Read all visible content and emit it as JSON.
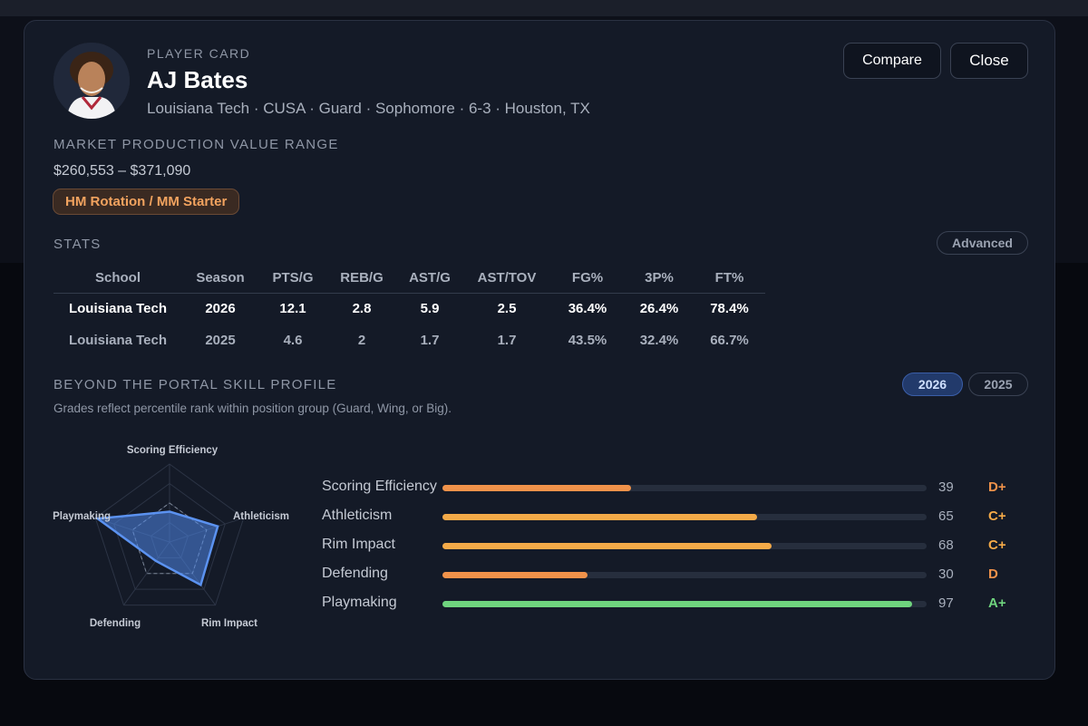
{
  "player": {
    "kicker": "PLAYER CARD",
    "name": "AJ Bates",
    "subline": "Louisiana Tech · CUSA · Guard · Sophomore · 6-3 · Houston, TX"
  },
  "actions": {
    "compare_label": "Compare",
    "close_label": "Close"
  },
  "market": {
    "title": "MARKET PRODUCTION VALUE RANGE",
    "range": "$260,553 – $371,090",
    "tier": "HM Rotation / MM Starter"
  },
  "stats": {
    "title": "STATS",
    "advanced_label": "Advanced",
    "columns": [
      "School",
      "Season",
      "PTS/G",
      "REB/G",
      "AST/G",
      "AST/TOV",
      "FG%",
      "3P%",
      "FT%"
    ],
    "rows": [
      [
        "Louisiana Tech",
        "2026",
        "12.1",
        "2.8",
        "5.9",
        "2.5",
        "36.4%",
        "26.4%",
        "78.4%"
      ],
      [
        "Louisiana Tech",
        "2025",
        "4.6",
        "2",
        "1.7",
        "1.7",
        "43.5%",
        "32.4%",
        "66.7%"
      ]
    ]
  },
  "skill_profile": {
    "title": "BEYOND THE PORTAL SKILL PROFILE",
    "note": "Grades reflect percentile rank within position group (Guard, Wing, or Big).",
    "year_tabs": [
      "2026",
      "2025"
    ],
    "active_year": "2026",
    "skills": [
      {
        "label": "Scoring Efficiency",
        "score": 39,
        "grade": "D+",
        "color": "#f0924a"
      },
      {
        "label": "Athleticism",
        "score": 65,
        "grade": "C+",
        "color": "#f4aa48"
      },
      {
        "label": "Rim Impact",
        "score": 68,
        "grade": "C+",
        "color": "#f4aa48"
      },
      {
        "label": "Defending",
        "score": 30,
        "grade": "D",
        "color": "#f0924a"
      },
      {
        "label": "Playmaking",
        "score": 97,
        "grade": "A+",
        "color": "#6fd47e"
      }
    ],
    "radar_labels": [
      "Scoring Efficiency",
      "Athleticism",
      "Rim Impact",
      "Defending",
      "Playmaking"
    ]
  },
  "colors": {
    "accent_blue": "#4f86e8",
    "tier_orange": "#f2a35f",
    "modal_bg": "#141a27"
  }
}
